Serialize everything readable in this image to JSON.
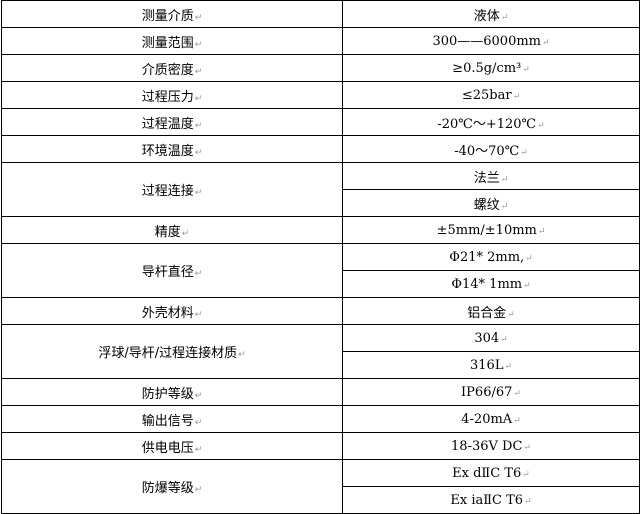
{
  "rows": [
    {
      "label": "测量介质",
      "values": [
        "液体"
      ]
    },
    {
      "label": "测量范围",
      "values": [
        "300——6000mm"
      ]
    },
    {
      "label": "介质密度",
      "values": [
        "≥0.5g/cm³"
      ]
    },
    {
      "label": "过程压力",
      "values": [
        "≤25bar"
      ]
    },
    {
      "label": "过程温度",
      "values": [
        "-20℃～+120℃"
      ]
    },
    {
      "label": "环境温度",
      "values": [
        "-40～70℃"
      ]
    },
    {
      "label": "过程连接",
      "values": [
        "法兰",
        "螺纹"
      ]
    },
    {
      "label": "精度",
      "values": [
        "±5mm/±10mm"
      ]
    },
    {
      "label": "导杆直径",
      "values": [
        "Φ21* 2mm,",
        "Φ14* 1mm"
      ]
    },
    {
      "label": "外壳材料",
      "values": [
        "铝合金"
      ]
    },
    {
      "label": "浮球/导杆/过程连接材质",
      "values": [
        "304",
        "316L"
      ]
    },
    {
      "label": "防护等级",
      "values": [
        "IP66/67"
      ]
    },
    {
      "label": "输出信号",
      "values": [
        "4-20mA"
      ]
    },
    {
      "label": "供电电压",
      "values": [
        "18-36V DC"
      ]
    },
    {
      "label": "防爆等级",
      "values": [
        "Ex dⅡC T6",
        "Ex iaⅡC T6"
      ]
    }
  ],
  "paragraph_mark": "↵"
}
